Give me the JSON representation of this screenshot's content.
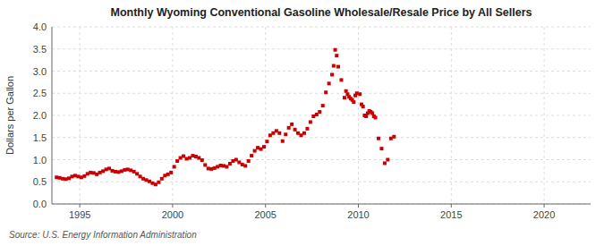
{
  "chart_data": {
    "type": "scatter",
    "title": "Monthly Wyoming Conventional Gasoline Wholesale/Resale Price by All Sellers",
    "ylabel": "Dollars per Gallon",
    "source": "Source: U.S. Energy Information Administration",
    "color": "#cc0000",
    "marker": "square",
    "grid": true,
    "xlim": [
      1993.5,
      2022.5
    ],
    "ylim": [
      0.0,
      4.0
    ],
    "xticks": [
      1995,
      2000,
      2005,
      2010,
      2015,
      2020
    ],
    "yticks": [
      {
        "value": 0.0,
        "label": "0.0"
      },
      0.5,
      {
        "value": 1.0,
        "label": "1.0"
      },
      1.5,
      {
        "value": 2.0,
        "label": "2.0"
      },
      2.5,
      {
        "value": 3.0,
        "label": "3.0"
      },
      3.5,
      {
        "value": 4.0,
        "label": "4.0"
      }
    ],
    "x": [
      1993.75,
      1993.917,
      1994.083,
      1994.25,
      1994.417,
      1994.583,
      1994.75,
      1994.917,
      1995.083,
      1995.25,
      1995.417,
      1995.583,
      1995.75,
      1995.917,
      1996.083,
      1996.25,
      1996.417,
      1996.583,
      1996.75,
      1996.917,
      1997.083,
      1997.25,
      1997.417,
      1997.583,
      1997.75,
      1997.917,
      1998.083,
      1998.25,
      1998.417,
      1998.583,
      1998.75,
      1998.917,
      1999.083,
      1999.25,
      1999.417,
      1999.583,
      1999.75,
      1999.917,
      2000.083,
      2000.25,
      2000.417,
      2000.583,
      2000.75,
      2000.917,
      2001.083,
      2001.25,
      2001.417,
      2001.583,
      2001.75,
      2001.917,
      2002.083,
      2002.25,
      2002.417,
      2002.583,
      2002.75,
      2002.917,
      2003.083,
      2003.25,
      2003.417,
      2003.583,
      2003.75,
      2003.917,
      2004.083,
      2004.25,
      2004.417,
      2004.583,
      2004.75,
      2004.917,
      2005.083,
      2005.25,
      2005.417,
      2005.583,
      2005.75,
      2005.917,
      2006.083,
      2006.25,
      2006.417,
      2006.583,
      2006.75,
      2006.917,
      2007.083,
      2007.25,
      2007.417,
      2007.583,
      2007.75,
      2007.917,
      2008.083,
      2008.25,
      2008.417,
      2008.583,
      2008.667,
      2008.75,
      2008.833,
      2008.917,
      2009.083,
      2009.25,
      2009.333,
      2009.417,
      2009.5,
      2009.583,
      2009.667,
      2009.75,
      2009.833,
      2009.917,
      2010.083,
      2010.167,
      2010.25,
      2010.333,
      2010.417,
      2010.5,
      2010.583,
      2010.667,
      2010.75,
      2010.833,
      2010.917,
      2011.083,
      2011.25,
      2011.417,
      2011.583,
      2011.75,
      2011.917
    ],
    "values": [
      0.6,
      0.59,
      0.57,
      0.56,
      0.58,
      0.62,
      0.64,
      0.62,
      0.6,
      0.63,
      0.68,
      0.71,
      0.7,
      0.67,
      0.71,
      0.74,
      0.78,
      0.8,
      0.75,
      0.73,
      0.72,
      0.74,
      0.77,
      0.78,
      0.76,
      0.73,
      0.68,
      0.62,
      0.57,
      0.54,
      0.51,
      0.47,
      0.44,
      0.49,
      0.57,
      0.64,
      0.67,
      0.71,
      0.84,
      0.97,
      1.04,
      1.08,
      1.02,
      1.04,
      1.09,
      1.07,
      1.04,
      0.99,
      0.88,
      0.8,
      0.79,
      0.81,
      0.84,
      0.87,
      0.86,
      0.84,
      0.91,
      0.97,
      1.0,
      0.94,
      0.89,
      0.86,
      0.97,
      1.09,
      1.2,
      1.27,
      1.24,
      1.29,
      1.41,
      1.55,
      1.6,
      1.65,
      1.6,
      1.42,
      1.57,
      1.72,
      1.8,
      1.68,
      1.6,
      1.55,
      1.6,
      1.7,
      1.85,
      1.98,
      2.02,
      2.08,
      2.22,
      2.52,
      2.72,
      2.92,
      3.12,
      3.48,
      3.35,
      3.1,
      2.8,
      2.4,
      2.55,
      2.48,
      2.42,
      2.38,
      2.35,
      2.3,
      2.45,
      2.5,
      2.48,
      2.25,
      2.2,
      2.0,
      1.98,
      2.05,
      2.1,
      2.08,
      2.05,
      1.98,
      1.95,
      1.48,
      1.25,
      0.92,
      1.0,
      1.48,
      1.52
    ]
  }
}
